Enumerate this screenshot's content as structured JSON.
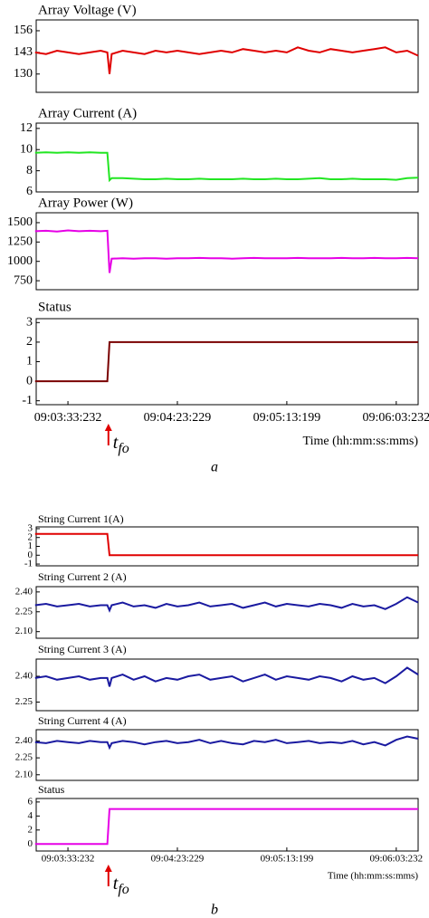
{
  "chart_data": [
    {
      "type": "line",
      "title": "Array Voltage (V)",
      "color": "#e00000",
      "x": [
        -15,
        -10,
        -5,
        0,
        5,
        10,
        15,
        18,
        19,
        20,
        25,
        30,
        35,
        40,
        45,
        50,
        55,
        60,
        65,
        70,
        75,
        80,
        85,
        90,
        95,
        100,
        105,
        110,
        115,
        120,
        125,
        130,
        135,
        140,
        145,
        150,
        155,
        160
      ],
      "values": [
        143,
        142,
        144,
        143,
        142,
        143,
        144,
        143,
        130,
        142,
        144,
        143,
        142,
        144,
        143,
        144,
        143,
        142,
        143,
        144,
        143,
        145,
        144,
        143,
        144,
        143,
        146,
        144,
        143,
        145,
        144,
        143,
        144,
        145,
        146,
        143,
        144,
        141
      ],
      "xlim": [
        -14.5,
        160
      ],
      "ylim": [
        119,
        162.5
      ],
      "yticks": [
        156,
        143,
        130
      ]
    },
    {
      "type": "line",
      "title": "Array Current (A)",
      "color": "#22e622",
      "x": [
        -15,
        -10,
        -5,
        0,
        5,
        10,
        15,
        18,
        19,
        20,
        25,
        30,
        35,
        40,
        45,
        50,
        55,
        60,
        65,
        70,
        75,
        80,
        85,
        90,
        95,
        100,
        105,
        110,
        115,
        120,
        125,
        130,
        135,
        140,
        145,
        150,
        155,
        160
      ],
      "values": [
        9.7,
        9.75,
        9.7,
        9.75,
        9.7,
        9.75,
        9.7,
        9.7,
        7.1,
        7.3,
        7.3,
        7.25,
        7.2,
        7.2,
        7.25,
        7.2,
        7.2,
        7.25,
        7.2,
        7.2,
        7.2,
        7.25,
        7.2,
        7.2,
        7.25,
        7.2,
        7.2,
        7.25,
        7.3,
        7.2,
        7.2,
        7.25,
        7.2,
        7.2,
        7.2,
        7.15,
        7.3,
        7.35
      ],
      "xlim": [
        -14.5,
        160
      ],
      "ylim": [
        6,
        12.5
      ],
      "yticks": [
        12,
        10,
        8,
        6
      ]
    },
    {
      "type": "line",
      "title": "Array Power (W)",
      "color": "#e600e6",
      "x": [
        -15,
        -10,
        -5,
        0,
        5,
        10,
        15,
        18,
        19,
        20,
        25,
        30,
        35,
        40,
        45,
        50,
        55,
        60,
        65,
        70,
        75,
        80,
        85,
        90,
        95,
        100,
        105,
        110,
        115,
        120,
        125,
        130,
        135,
        140,
        145,
        150,
        155,
        160
      ],
      "values": [
        1390,
        1395,
        1385,
        1400,
        1390,
        1395,
        1390,
        1395,
        850,
        1035,
        1040,
        1035,
        1040,
        1040,
        1035,
        1040,
        1040,
        1045,
        1040,
        1040,
        1035,
        1040,
        1045,
        1040,
        1040,
        1040,
        1045,
        1040,
        1040,
        1040,
        1045,
        1040,
        1040,
        1045,
        1040,
        1040,
        1045,
        1040
      ],
      "xlim": [
        -14.5,
        160
      ],
      "ylim": [
        634,
        1628
      ],
      "yticks": [
        1500,
        1250,
        1000,
        750
      ]
    },
    {
      "type": "line",
      "title": "Status",
      "color": "#7a0000",
      "x": [
        -15,
        -10,
        -5,
        0,
        5,
        10,
        15,
        18,
        19,
        20,
        25,
        30,
        35,
        40,
        45,
        50,
        55,
        60,
        65,
        70,
        75,
        80,
        85,
        90,
        95,
        100,
        105,
        110,
        115,
        120,
        125,
        130,
        135,
        140,
        145,
        150,
        155,
        160
      ],
      "values": [
        0,
        0,
        0,
        0,
        0,
        0,
        0,
        0,
        2,
        2,
        2,
        2,
        2,
        2,
        2,
        2,
        2,
        2,
        2,
        2,
        2,
        2,
        2,
        2,
        2,
        2,
        2,
        2,
        2,
        2,
        2,
        2,
        2,
        2,
        2,
        2,
        2,
        2
      ],
      "xlim": [
        -14.5,
        160
      ],
      "ylim": [
        -1.2,
        3.2
      ],
      "yticks": [
        3,
        2,
        1,
        0,
        -1
      ],
      "xticks": [
        {
          "value": 0,
          "label": "09:03:33:232"
        },
        {
          "value": 50,
          "label": "09:04:23:229"
        },
        {
          "value": 100,
          "label": "09:05:13:199"
        },
        {
          "value": 150,
          "label": "09:06:03:232"
        }
      ],
      "xlabel": "Time (hh:mm:ss:mms)",
      "annotation": {
        "text": "t",
        "subscript": "fo",
        "x": 18.5
      },
      "caption": "a"
    },
    {
      "type": "line",
      "title": "String Current 1(A)",
      "color": "#e00000",
      "x": [
        -15,
        -10,
        -5,
        0,
        5,
        10,
        15,
        18,
        19,
        20,
        25,
        30,
        35,
        40,
        45,
        50,
        55,
        60,
        65,
        70,
        75,
        80,
        85,
        90,
        95,
        100,
        105,
        110,
        115,
        120,
        125,
        130,
        135,
        140,
        145,
        150,
        155,
        160
      ],
      "values": [
        2.4,
        2.4,
        2.4,
        2.4,
        2.4,
        2.4,
        2.4,
        2.4,
        0,
        0,
        0,
        0,
        0,
        0,
        0,
        0,
        0,
        0,
        0,
        0,
        0,
        0,
        0,
        0,
        0,
        0,
        0,
        0,
        0,
        0,
        0,
        0,
        0,
        0,
        0,
        0,
        0,
        0
      ],
      "xlim": [
        -14.5,
        160
      ],
      "ylim": [
        -1.2,
        3.2
      ],
      "yticks": [
        3,
        2,
        1,
        0,
        -1
      ]
    },
    {
      "type": "line",
      "title": "String Current 2 (A)",
      "color": "#1a1aa0",
      "x": [
        -15,
        -10,
        -5,
        0,
        5,
        10,
        15,
        18,
        19,
        20,
        25,
        30,
        35,
        40,
        45,
        50,
        55,
        60,
        65,
        70,
        75,
        80,
        85,
        90,
        95,
        100,
        105,
        110,
        115,
        120,
        125,
        130,
        135,
        140,
        145,
        150,
        155,
        160
      ],
      "values": [
        2.3,
        2.31,
        2.29,
        2.3,
        2.31,
        2.29,
        2.3,
        2.3,
        2.26,
        2.3,
        2.32,
        2.29,
        2.3,
        2.28,
        2.31,
        2.29,
        2.3,
        2.32,
        2.29,
        2.3,
        2.31,
        2.28,
        2.3,
        2.32,
        2.29,
        2.31,
        2.3,
        2.29,
        2.31,
        2.3,
        2.28,
        2.31,
        2.29,
        2.3,
        2.27,
        2.31,
        2.36,
        2.32
      ],
      "xlim": [
        -14.5,
        160
      ],
      "ylim": [
        2.05,
        2.44
      ],
      "yticks": [
        {
          "value": 2.4,
          "label": "2.40"
        },
        {
          "value": 2.25,
          "label": "2.25"
        },
        {
          "value": 2.1,
          "label": "2.10"
        }
      ]
    },
    {
      "type": "line",
      "title": "String Current 3 (A)",
      "color": "#1a1aa0",
      "x": [
        -15,
        -10,
        -5,
        0,
        5,
        10,
        15,
        18,
        19,
        20,
        25,
        30,
        35,
        40,
        45,
        50,
        55,
        60,
        65,
        70,
        75,
        80,
        85,
        90,
        95,
        100,
        105,
        110,
        115,
        120,
        125,
        130,
        135,
        140,
        145,
        150,
        155,
        160
      ],
      "values": [
        2.39,
        2.4,
        2.38,
        2.39,
        2.4,
        2.38,
        2.39,
        2.39,
        2.34,
        2.39,
        2.41,
        2.38,
        2.4,
        2.37,
        2.39,
        2.38,
        2.4,
        2.41,
        2.38,
        2.39,
        2.4,
        2.37,
        2.39,
        2.41,
        2.38,
        2.4,
        2.39,
        2.38,
        2.4,
        2.39,
        2.37,
        2.4,
        2.38,
        2.39,
        2.36,
        2.4,
        2.45,
        2.41
      ],
      "xlim": [
        -14.5,
        160
      ],
      "ylim": [
        2.2,
        2.5
      ],
      "yticks": [
        {
          "value": 2.4,
          "label": "2.40"
        },
        {
          "value": 2.25,
          "label": "2.25"
        }
      ]
    },
    {
      "type": "line",
      "title": "String Current 4 (A)",
      "color": "#1a1aa0",
      "x": [
        -15,
        -10,
        -5,
        0,
        5,
        10,
        15,
        18,
        19,
        20,
        25,
        30,
        35,
        40,
        45,
        50,
        55,
        60,
        65,
        70,
        75,
        80,
        85,
        90,
        95,
        100,
        105,
        110,
        115,
        120,
        125,
        130,
        135,
        140,
        145,
        150,
        155,
        160
      ],
      "values": [
        2.39,
        2.38,
        2.4,
        2.39,
        2.38,
        2.4,
        2.39,
        2.39,
        2.34,
        2.38,
        2.4,
        2.39,
        2.37,
        2.39,
        2.4,
        2.38,
        2.39,
        2.41,
        2.38,
        2.4,
        2.38,
        2.37,
        2.4,
        2.39,
        2.41,
        2.38,
        2.39,
        2.4,
        2.38,
        2.39,
        2.38,
        2.4,
        2.37,
        2.39,
        2.36,
        2.41,
        2.44,
        2.42
      ],
      "xlim": [
        -14.5,
        160
      ],
      "ylim": [
        2.05,
        2.5
      ],
      "yticks": [
        {
          "value": 2.4,
          "label": "2.40"
        },
        {
          "value": 2.25,
          "label": "2.25"
        },
        {
          "value": 2.1,
          "label": "2.10"
        }
      ]
    },
    {
      "type": "line",
      "title": "Status",
      "color": "#e600e6",
      "x": [
        -15,
        -10,
        -5,
        0,
        5,
        10,
        15,
        18,
        19,
        20,
        25,
        30,
        35,
        40,
        45,
        50,
        55,
        60,
        65,
        70,
        75,
        80,
        85,
        90,
        95,
        100,
        105,
        110,
        115,
        120,
        125,
        130,
        135,
        140,
        145,
        150,
        155,
        160
      ],
      "values": [
        0,
        0,
        0,
        0,
        0,
        0,
        0,
        0,
        5,
        5,
        5,
        5,
        5,
        5,
        5,
        5,
        5,
        5,
        5,
        5,
        5,
        5,
        5,
        5,
        5,
        5,
        5,
        5,
        5,
        5,
        5,
        5,
        5,
        5,
        5,
        5,
        5,
        5
      ],
      "xlim": [
        -14.5,
        160
      ],
      "ylim": [
        -1,
        6.5
      ],
      "yticks": [
        6,
        4,
        2,
        0
      ],
      "xticks": [
        {
          "value": 0,
          "label": "09:03:33:232"
        },
        {
          "value": 50,
          "label": "09:04:23:229"
        },
        {
          "value": 100,
          "label": "09:05:13:199"
        },
        {
          "value": 150,
          "label": "09:06:03:232"
        }
      ],
      "xlabel": "Time (hh:mm:ss:mms)",
      "annotation": {
        "text": "t",
        "subscript": "fo",
        "x": 18.5
      },
      "caption": "b"
    }
  ]
}
